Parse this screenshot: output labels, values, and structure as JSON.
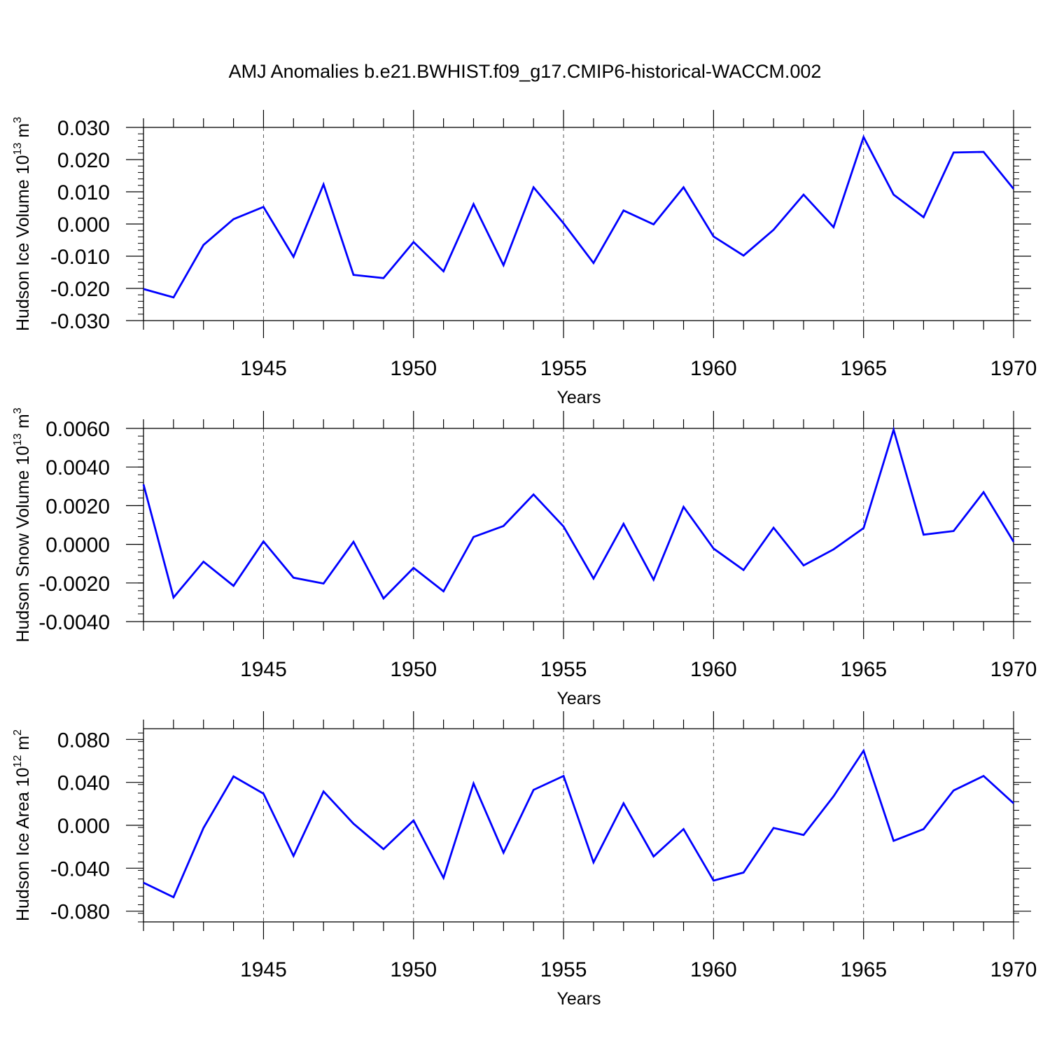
{
  "title": "AMJ Anomalies b.e21.BWHIST.f09_g17.CMIP6-historical-WACCM.002",
  "colors": {
    "line": "#0000ff",
    "axis": "#000000",
    "grid": "#555555"
  },
  "chart_data": [
    {
      "type": "line",
      "ylabel": {
        "main": "Hudson Ice Volume 10",
        "exp": "13",
        "unit": " m",
        "unit_exp": "3"
      },
      "xlabel": "Years",
      "xlim": [
        1941,
        1970
      ],
      "ylim": [
        -0.03,
        0.03
      ],
      "x_ticks": [
        1945,
        1950,
        1955,
        1960,
        1965,
        1970
      ],
      "y_ticks": [
        0.03,
        0.02,
        0.01,
        0.0,
        -0.01,
        -0.02,
        -0.03
      ],
      "y_tick_labels": [
        "0.030",
        "0.020",
        "0.010",
        "0.000",
        "-0.010",
        "-0.020",
        "-0.030"
      ],
      "grid": "vertical dashed at major x ticks",
      "series": [
        {
          "x": [
            1941,
            1942,
            1943,
            1944,
            1945,
            1946,
            1947,
            1948,
            1949,
            1950,
            1951,
            1952,
            1953,
            1954,
            1955,
            1956,
            1957,
            1958,
            1959,
            1960,
            1961,
            1962,
            1963,
            1964,
            1965,
            1966,
            1967,
            1968,
            1969,
            1970
          ],
          "values": [
            -0.0202,
            -0.0228,
            -0.0065,
            0.0015,
            0.0053,
            -0.0102,
            0.0123,
            -0.0158,
            -0.0168,
            -0.0056,
            -0.0147,
            0.0062,
            -0.0128,
            0.0114,
            0.0002,
            -0.0121,
            0.0042,
            -0.0001,
            0.0114,
            -0.0039,
            -0.0098,
            -0.0018,
            0.0091,
            -0.001,
            0.027,
            0.0091,
            0.0021,
            0.0222,
            0.0224,
            0.0109
          ]
        }
      ]
    },
    {
      "type": "line",
      "ylabel": {
        "main": "Hudson Snow Volume 10",
        "exp": "13",
        "unit": " m",
        "unit_exp": "3"
      },
      "xlabel": "Years",
      "xlim": [
        1941,
        1970
      ],
      "ylim": [
        -0.004,
        0.006
      ],
      "x_ticks": [
        1945,
        1950,
        1955,
        1960,
        1965,
        1970
      ],
      "y_ticks": [
        0.006,
        0.004,
        0.002,
        0.0,
        -0.002,
        -0.004
      ],
      "y_tick_labels": [
        "0.0060",
        "0.0040",
        "0.0020",
        "0.0000",
        "-0.0020",
        "-0.0040"
      ],
      "grid": "vertical dashed at major x ticks",
      "series": [
        {
          "x": [
            1941,
            1942,
            1943,
            1944,
            1945,
            1946,
            1947,
            1948,
            1949,
            1950,
            1951,
            1952,
            1953,
            1954,
            1955,
            1956,
            1957,
            1958,
            1959,
            1960,
            1961,
            1962,
            1963,
            1964,
            1965,
            1966,
            1967,
            1968,
            1969,
            1970
          ],
          "values": [
            0.0031,
            -0.00275,
            -0.0009,
            -0.00215,
            0.00015,
            -0.00173,
            -0.00203,
            0.00013,
            -0.0028,
            -0.00122,
            -0.00243,
            0.00038,
            0.00095,
            0.00258,
            0.00092,
            -0.00177,
            0.00106,
            -0.00183,
            0.00194,
            -0.00022,
            -0.00133,
            0.00086,
            -0.00109,
            -0.00026,
            0.00084,
            0.00593,
            0.0005,
            0.00069,
            0.0027,
            0.00013
          ]
        }
      ]
    },
    {
      "type": "line",
      "ylabel": {
        "main": "Hudson Ice Area 10",
        "exp": "12",
        "unit": " m",
        "unit_exp": "2"
      },
      "xlabel": "Years",
      "xlim": [
        1941,
        1970
      ],
      "ylim": [
        -0.09,
        0.09
      ],
      "x_ticks": [
        1945,
        1950,
        1955,
        1960,
        1965,
        1970
      ],
      "y_ticks": [
        0.08,
        0.04,
        0.0,
        -0.04,
        -0.08
      ],
      "y_tick_labels": [
        "0.080",
        "0.040",
        "0.000",
        "-0.040",
        "-0.080"
      ],
      "grid": "vertical dashed at major x ticks",
      "series": [
        {
          "x": [
            1941,
            1942,
            1943,
            1944,
            1945,
            1946,
            1947,
            1948,
            1949,
            1950,
            1951,
            1952,
            1953,
            1954,
            1955,
            1956,
            1957,
            1958,
            1959,
            1960,
            1961,
            1962,
            1963,
            1964,
            1965,
            1966,
            1967,
            1968,
            1969,
            1970
          ],
          "values": [
            -0.0535,
            -0.067,
            -0.0025,
            0.0455,
            0.0295,
            -0.0285,
            0.0315,
            0.0015,
            -0.0222,
            0.0045,
            -0.049,
            0.039,
            -0.0255,
            0.033,
            0.046,
            -0.0345,
            0.0205,
            -0.029,
            -0.0035,
            -0.0515,
            -0.044,
            -0.0025,
            -0.009,
            0.027,
            0.0695,
            -0.0145,
            -0.0035,
            0.0325,
            0.046,
            0.0205
          ]
        }
      ]
    }
  ]
}
